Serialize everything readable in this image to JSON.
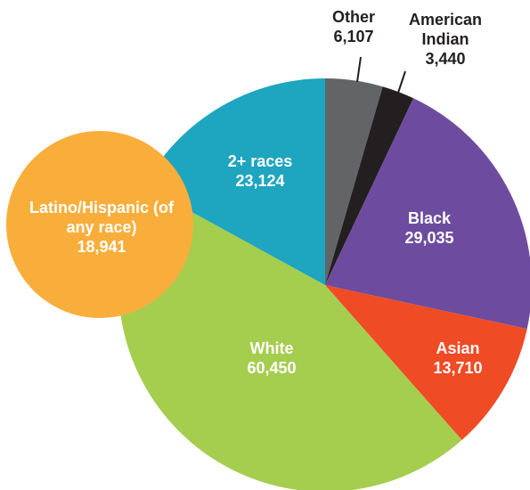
{
  "chart_data": {
    "type": "pie",
    "categories": [
      "Other",
      "American Indian",
      "Black",
      "Asian",
      "White",
      "2+ races"
    ],
    "values": [
      6107,
      3440,
      29035,
      13710,
      60450,
      23124
    ],
    "value_labels": [
      "6,107",
      "3,440",
      "29,035",
      "13,710",
      "60,450",
      "23,124"
    ],
    "colors": [
      "#636466",
      "#231f20",
      "#6d4c9f",
      "#ef4b24",
      "#a5cd4e",
      "#1ea5bf"
    ],
    "overlay": {
      "name": "Latino/Hispanic (of any race)",
      "value": 18941,
      "value_label": "18,941",
      "color": "#f9ae3b"
    }
  }
}
